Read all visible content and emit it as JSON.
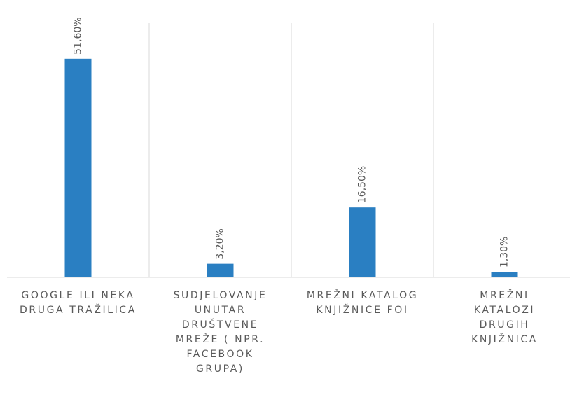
{
  "chart_data": {
    "type": "bar",
    "categories": [
      "GOOGLE ILI NEKA DRUGA TRAŽILICA",
      "SUDJELOVANJE UNUTAR DRUŠTVENE MREŽE ( NPR. FACEBOOK GRUPA)",
      "MREŽNI KATALOG KNJIŽNICE FOI",
      "MREŽNI KATALOZI DRUGIH KNJIŽNICA"
    ],
    "values": [
      51.6,
      3.2,
      16.5,
      1.3
    ],
    "value_labels": [
      "51,60%",
      "3,20%",
      "16,50%",
      "1,30%"
    ],
    "color": "#2a7fc2",
    "ylim": [
      0,
      60
    ]
  }
}
